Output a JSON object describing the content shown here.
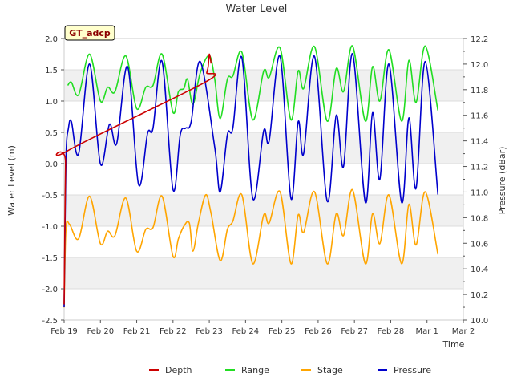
{
  "chart_data": {
    "type": "line",
    "title": "Water Level",
    "xlabel": "Time",
    "ylabel": "Water Level (m)",
    "y2label": "Pressure (dBar)",
    "annotation": "GT_adcp",
    "x_ticks": [
      "Feb 19",
      "Feb 20",
      "Feb 21",
      "Feb 22",
      "Feb 23",
      "Feb 24",
      "Feb 25",
      "Feb 26",
      "Feb 27",
      "Feb 28",
      "Mar 1",
      "Mar 2"
    ],
    "y_ticks": [
      "-2.5",
      "-2.0",
      "-1.5",
      "-1.0",
      "-0.5",
      "0.0",
      "0.5",
      "1.0",
      "1.5",
      "2.0"
    ],
    "y2_ticks": [
      "10.0",
      "10.2",
      "10.4",
      "10.6",
      "10.8",
      "11.0",
      "11.2",
      "11.4",
      "11.6",
      "11.8",
      "12.0",
      "12.2"
    ],
    "xlim": [
      0,
      11
    ],
    "ylim": [
      -2.5,
      2.0
    ],
    "y2lim": [
      10.0,
      12.2
    ],
    "legend_position": "bottom",
    "series": [
      {
        "name": "Depth",
        "color": "#cc0000",
        "axis": "left",
        "points": [
          [
            0.0,
            -2.25
          ],
          [
            0.04,
            0.0
          ],
          [
            0.08,
            0.2
          ],
          [
            3.88,
            1.3
          ],
          [
            3.93,
            1.45
          ],
          [
            3.97,
            1.55
          ],
          [
            4.0,
            1.75
          ],
          [
            4.05,
            1.6
          ]
        ]
      },
      {
        "name": "Range",
        "color": "#22dd22",
        "axis": "left",
        "points": [
          [
            0.1,
            1.25
          ],
          [
            0.2,
            1.3
          ],
          [
            0.4,
            1.1
          ],
          [
            0.7,
            1.75
          ],
          [
            1.0,
            1.0
          ],
          [
            1.2,
            1.22
          ],
          [
            1.4,
            1.15
          ],
          [
            1.7,
            1.72
          ],
          [
            2.0,
            0.88
          ],
          [
            2.25,
            1.22
          ],
          [
            2.45,
            1.25
          ],
          [
            2.7,
            1.75
          ],
          [
            3.0,
            0.82
          ],
          [
            3.15,
            1.15
          ],
          [
            3.3,
            1.2
          ],
          [
            3.4,
            1.35
          ],
          [
            3.55,
            0.95
          ],
          [
            3.75,
            1.45
          ],
          [
            4.0,
            1.73
          ],
          [
            4.15,
            1.35
          ],
          [
            4.3,
            0.72
          ],
          [
            4.5,
            1.35
          ],
          [
            4.65,
            1.4
          ],
          [
            4.9,
            1.78
          ],
          [
            5.2,
            0.7
          ],
          [
            5.5,
            1.48
          ],
          [
            5.65,
            1.38
          ],
          [
            5.95,
            1.85
          ],
          [
            6.25,
            0.7
          ],
          [
            6.45,
            1.48
          ],
          [
            6.6,
            1.2
          ],
          [
            6.9,
            1.87
          ],
          [
            7.25,
            0.68
          ],
          [
            7.5,
            1.52
          ],
          [
            7.7,
            1.15
          ],
          [
            7.95,
            1.88
          ],
          [
            8.3,
            0.68
          ],
          [
            8.5,
            1.55
          ],
          [
            8.7,
            1.0
          ],
          [
            8.95,
            1.82
          ],
          [
            9.3,
            0.68
          ],
          [
            9.5,
            1.65
          ],
          [
            9.7,
            0.98
          ],
          [
            9.95,
            1.88
          ],
          [
            10.3,
            0.85
          ]
        ]
      },
      {
        "name": "Stage",
        "color": "#ffa500",
        "axis": "left",
        "points": [
          [
            0.0,
            -2.3
          ],
          [
            0.05,
            -1.05
          ],
          [
            0.15,
            -0.97
          ],
          [
            0.4,
            -1.2
          ],
          [
            0.7,
            -0.52
          ],
          [
            1.0,
            -1.28
          ],
          [
            1.2,
            -1.08
          ],
          [
            1.4,
            -1.15
          ],
          [
            1.7,
            -0.55
          ],
          [
            2.0,
            -1.4
          ],
          [
            2.25,
            -1.05
          ],
          [
            2.45,
            -1.02
          ],
          [
            2.7,
            -0.52
          ],
          [
            3.0,
            -1.48
          ],
          [
            3.15,
            -1.2
          ],
          [
            3.3,
            -1.0
          ],
          [
            3.45,
            -0.95
          ],
          [
            3.55,
            -1.4
          ],
          [
            3.7,
            -0.95
          ],
          [
            3.9,
            -0.5
          ],
          [
            4.05,
            -0.8
          ],
          [
            4.3,
            -1.55
          ],
          [
            4.5,
            -1.05
          ],
          [
            4.65,
            -0.92
          ],
          [
            4.9,
            -0.5
          ],
          [
            5.2,
            -1.6
          ],
          [
            5.5,
            -0.82
          ],
          [
            5.65,
            -0.95
          ],
          [
            5.95,
            -0.45
          ],
          [
            6.25,
            -1.6
          ],
          [
            6.45,
            -0.82
          ],
          [
            6.6,
            -1.1
          ],
          [
            6.9,
            -0.45
          ],
          [
            7.25,
            -1.6
          ],
          [
            7.5,
            -0.8
          ],
          [
            7.7,
            -1.15
          ],
          [
            7.95,
            -0.42
          ],
          [
            8.3,
            -1.6
          ],
          [
            8.5,
            -0.8
          ],
          [
            8.7,
            -1.28
          ],
          [
            8.95,
            -0.5
          ],
          [
            9.3,
            -1.6
          ],
          [
            9.5,
            -0.65
          ],
          [
            9.7,
            -1.3
          ],
          [
            9.95,
            -0.45
          ],
          [
            10.3,
            -1.45
          ]
        ]
      },
      {
        "name": "Pressure",
        "color": "#0000cc",
        "axis": "right",
        "points": [
          [
            0.0,
            10.1
          ],
          [
            0.05,
            11.25
          ],
          [
            0.12,
            11.5
          ],
          [
            0.2,
            11.55
          ],
          [
            0.4,
            11.3
          ],
          [
            0.7,
            12.0
          ],
          [
            1.0,
            11.22
          ],
          [
            1.25,
            11.53
          ],
          [
            1.45,
            11.38
          ],
          [
            1.75,
            11.98
          ],
          [
            2.05,
            11.06
          ],
          [
            2.3,
            11.46
          ],
          [
            2.45,
            11.5
          ],
          [
            2.7,
            12.02
          ],
          [
            3.0,
            11.02
          ],
          [
            3.2,
            11.45
          ],
          [
            3.35,
            11.5
          ],
          [
            3.5,
            11.55
          ],
          [
            3.75,
            12.02
          ],
          [
            4.15,
            11.35
          ],
          [
            4.3,
            11.0
          ],
          [
            4.5,
            11.45
          ],
          [
            4.65,
            11.5
          ],
          [
            4.9,
            12.05
          ],
          [
            5.2,
            10.95
          ],
          [
            5.5,
            11.48
          ],
          [
            5.65,
            11.4
          ],
          [
            5.95,
            12.06
          ],
          [
            6.25,
            10.95
          ],
          [
            6.45,
            11.55
          ],
          [
            6.6,
            11.3
          ],
          [
            6.9,
            12.06
          ],
          [
            7.25,
            10.93
          ],
          [
            7.5,
            11.6
          ],
          [
            7.7,
            11.2
          ],
          [
            7.95,
            12.08
          ],
          [
            8.3,
            10.92
          ],
          [
            8.5,
            11.62
          ],
          [
            8.7,
            11.1
          ],
          [
            8.95,
            12.0
          ],
          [
            9.3,
            10.92
          ],
          [
            9.5,
            11.58
          ],
          [
            9.7,
            11.03
          ],
          [
            9.95,
            12.02
          ],
          [
            10.3,
            10.98
          ]
        ]
      }
    ]
  }
}
